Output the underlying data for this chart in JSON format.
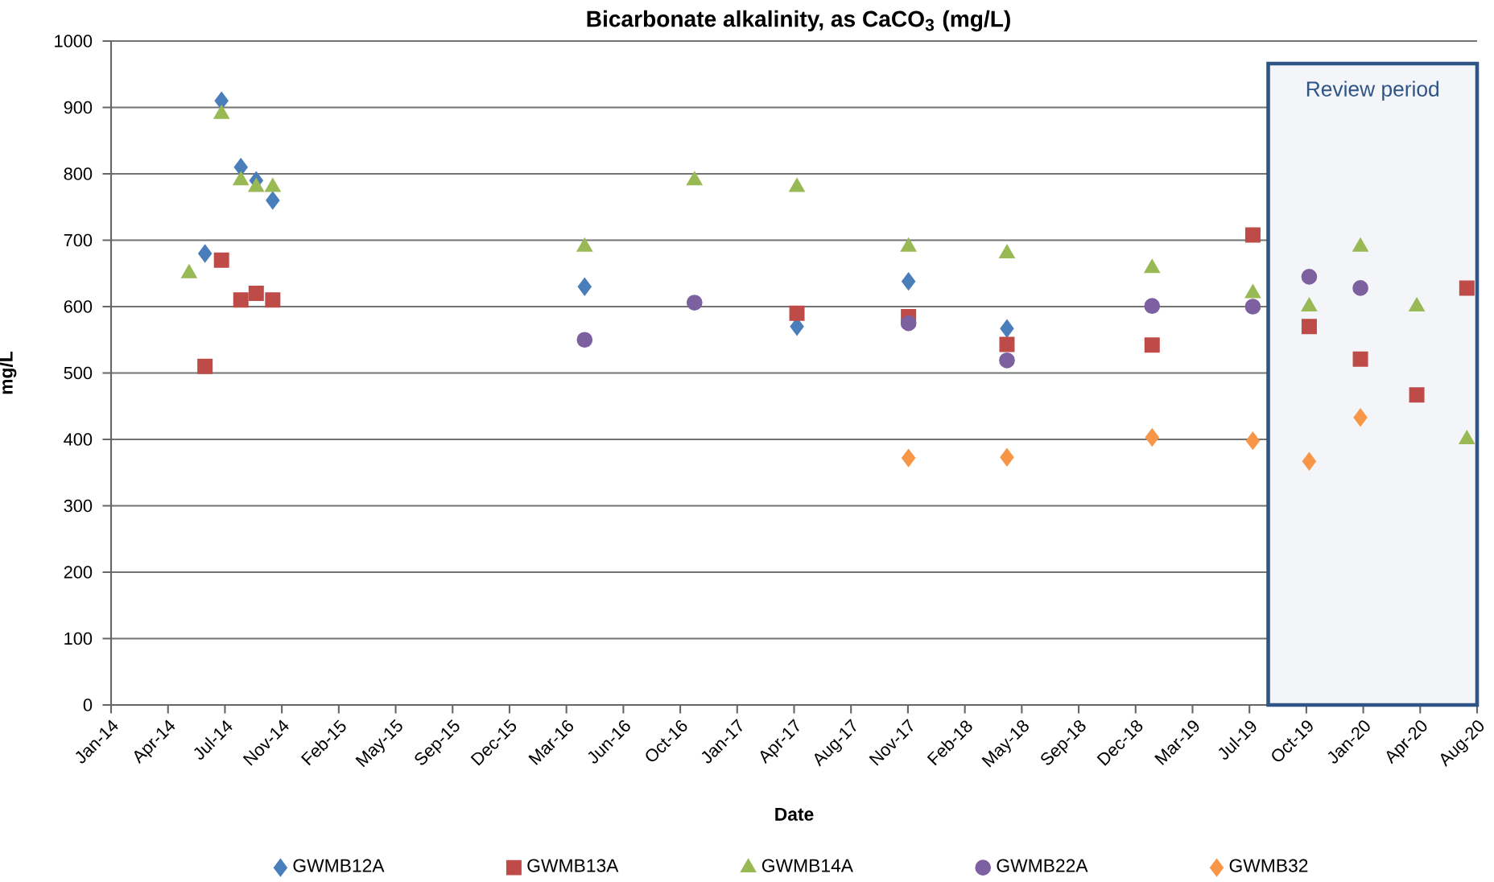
{
  "chart_data": {
    "type": "scatter",
    "title": "Bicarbonate alkalinity, as CaCO$_{3}$ (mg/L)",
    "xlabel": "Date",
    "ylabel": "mg/L",
    "xlim": [
      "2014-01-09",
      "2020-08-05"
    ],
    "xticks": [
      {
        "value": "2014-01-09",
        "label": "Jan-14"
      },
      {
        "value": "2014-04-19",
        "label": "Apr-14"
      },
      {
        "value": "2014-07-28",
        "label": "Jul-14"
      },
      {
        "value": "2014-11-05",
        "label": "Nov-14"
      },
      {
        "value": "2015-02-13",
        "label": "Feb-15"
      },
      {
        "value": "2015-05-24",
        "label": "May-15"
      },
      {
        "value": "2015-09-01",
        "label": "Sep-15"
      },
      {
        "value": "2015-12-10",
        "label": "Dec-15"
      },
      {
        "value": "2016-03-19",
        "label": "Mar-16"
      },
      {
        "value": "2016-06-27",
        "label": "Jun-16"
      },
      {
        "value": "2016-10-05",
        "label": "Oct-16"
      },
      {
        "value": "2017-01-13",
        "label": "Jan-17"
      },
      {
        "value": "2017-04-23",
        "label": "Apr-17"
      },
      {
        "value": "2017-08-01",
        "label": "Aug-17"
      },
      {
        "value": "2017-11-09",
        "label": "Nov-17"
      },
      {
        "value": "2018-02-17",
        "label": "Feb-18"
      },
      {
        "value": "2018-05-28",
        "label": "May-18"
      },
      {
        "value": "2018-09-05",
        "label": "Sep-18"
      },
      {
        "value": "2018-12-14",
        "label": "Dec-18"
      },
      {
        "value": "2019-03-24",
        "label": "Mar-19"
      },
      {
        "value": "2019-07-02",
        "label": "Jul-19"
      },
      {
        "value": "2019-10-10",
        "label": "Oct-19"
      },
      {
        "value": "2020-01-18",
        "label": "Jan-20"
      },
      {
        "value": "2020-04-27",
        "label": "Apr-20"
      },
      {
        "value": "2020-08-05",
        "label": "Aug-20"
      }
    ],
    "ylim": [
      0,
      1000
    ],
    "yticks": [
      0,
      100,
      200,
      300,
      400,
      500,
      600,
      700,
      800,
      900,
      1000
    ],
    "grid": "y",
    "legend": "bottom",
    "bands": [
      {
        "axis": "x",
        "from": "2019-08-04",
        "to": "2020-08-05",
        "label": "Review period",
        "color": "#2f5587"
      }
    ],
    "series": [
      {
        "name": "GWMB12A",
        "color": "#4a7ebb",
        "marker": "diamond",
        "x": [
          "2014-06-23",
          "2014-07-22",
          "2014-08-25",
          "2014-09-21",
          "2014-10-20",
          "2016-04-20",
          "2017-04-28",
          "2017-11-10",
          "2018-05-02"
        ],
        "values": [
          680,
          910,
          810,
          790,
          760,
          630,
          570,
          638,
          567
        ]
      },
      {
        "name": "GWMB13A",
        "color": "#be4b48",
        "marker": "square",
        "x": [
          "2014-06-23",
          "2014-07-22",
          "2014-08-25",
          "2014-09-21",
          "2014-10-20",
          "2017-04-28",
          "2017-11-10",
          "2018-05-02",
          "2019-01-12",
          "2019-07-08",
          "2019-10-15",
          "2020-01-13",
          "2020-04-21",
          "2020-07-18"
        ],
        "values": [
          510,
          670,
          610,
          620,
          610,
          590,
          585,
          543,
          542,
          708,
          570,
          521,
          467,
          628
        ]
      },
      {
        "name": "GWMB14A",
        "color": "#98b954",
        "marker": "triangle",
        "x": [
          "2014-05-26",
          "2014-07-22",
          "2014-08-25",
          "2014-09-21",
          "2014-10-20",
          "2016-04-20",
          "2016-10-30",
          "2017-04-28",
          "2017-11-10",
          "2018-05-02",
          "2019-01-12",
          "2019-07-08",
          "2019-10-15",
          "2020-01-13",
          "2020-04-21",
          "2020-07-18"
        ],
        "values": [
          650,
          890,
          790,
          780,
          780,
          690,
          790,
          780,
          690,
          680,
          658,
          620,
          600,
          690,
          600,
          400
        ]
      },
      {
        "name": "GWMB22A",
        "color": "#7d60a0",
        "marker": "circle",
        "x": [
          "2016-04-20",
          "2016-10-30",
          "2017-11-10",
          "2018-05-02",
          "2019-01-12",
          "2019-07-08",
          "2019-10-15",
          "2020-01-13"
        ],
        "values": [
          550,
          606,
          575,
          519,
          601,
          600,
          645,
          628
        ]
      },
      {
        "name": "GWMB32",
        "color": "#f79646",
        "marker": "diamond",
        "x": [
          "2017-11-10",
          "2018-05-02",
          "2019-01-12",
          "2019-07-08",
          "2019-10-15",
          "2020-01-13"
        ],
        "values": [
          372,
          373,
          403,
          398,
          367,
          433
        ]
      }
    ]
  }
}
